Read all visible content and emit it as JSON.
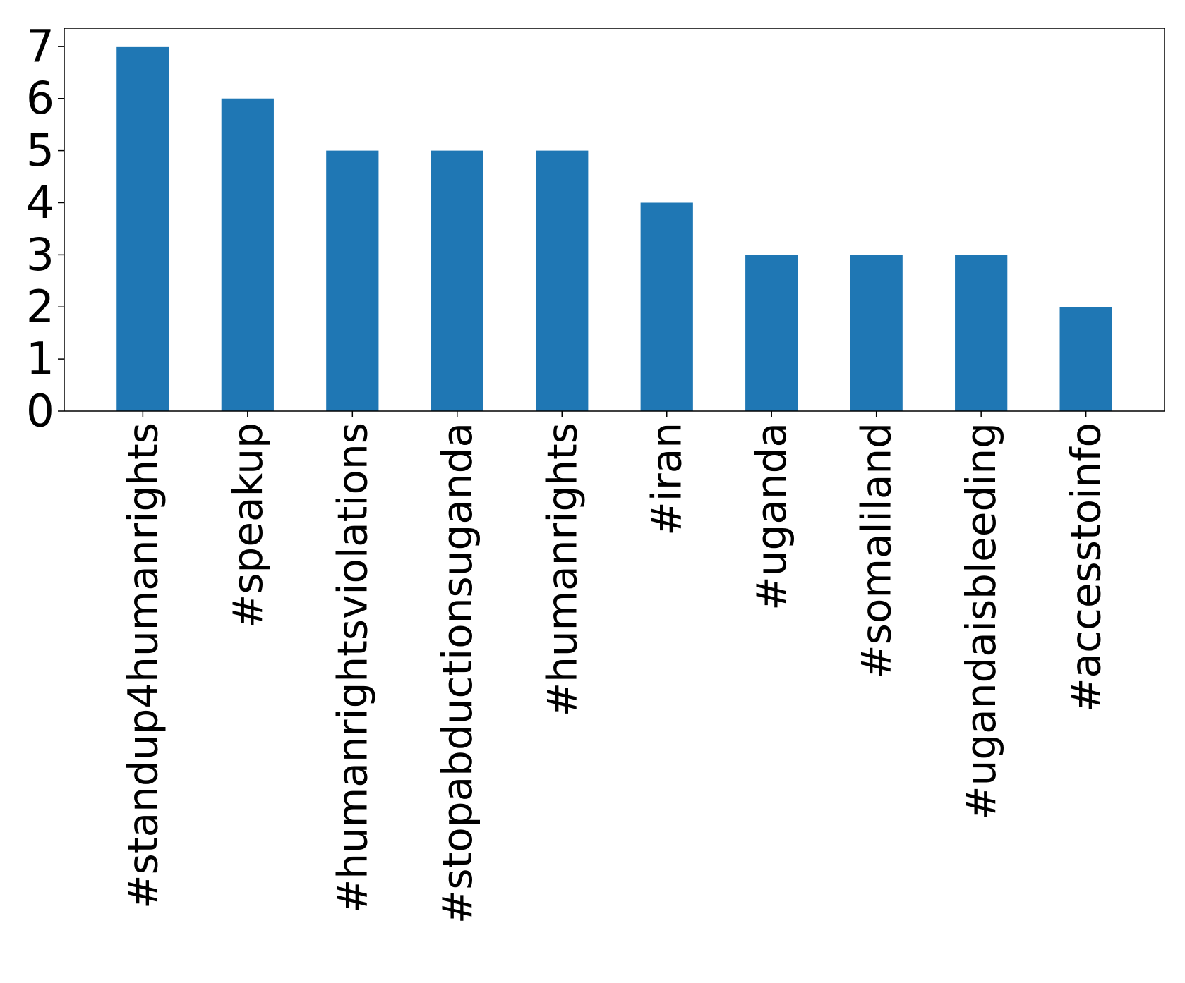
{
  "chart_data": {
    "type": "bar",
    "title": "",
    "xlabel": "",
    "ylabel": "",
    "categories": [
      "#standup4humanrights",
      "#speakup",
      "#humanrightsviolations",
      "#stopabductionsuganda",
      "#humanrights",
      "#iran",
      "#uganda",
      "#somaliland",
      "#ugandaisbleeding",
      "#accesstoinfo"
    ],
    "values": [
      7,
      6,
      5,
      5,
      5,
      4,
      3,
      3,
      3,
      2
    ],
    "ylim": [
      0,
      7.35
    ],
    "yticks": [
      0,
      1,
      2,
      3,
      4,
      5,
      6,
      7
    ],
    "grid": false,
    "legend": "none",
    "bar_color": "#1f77b4"
  }
}
